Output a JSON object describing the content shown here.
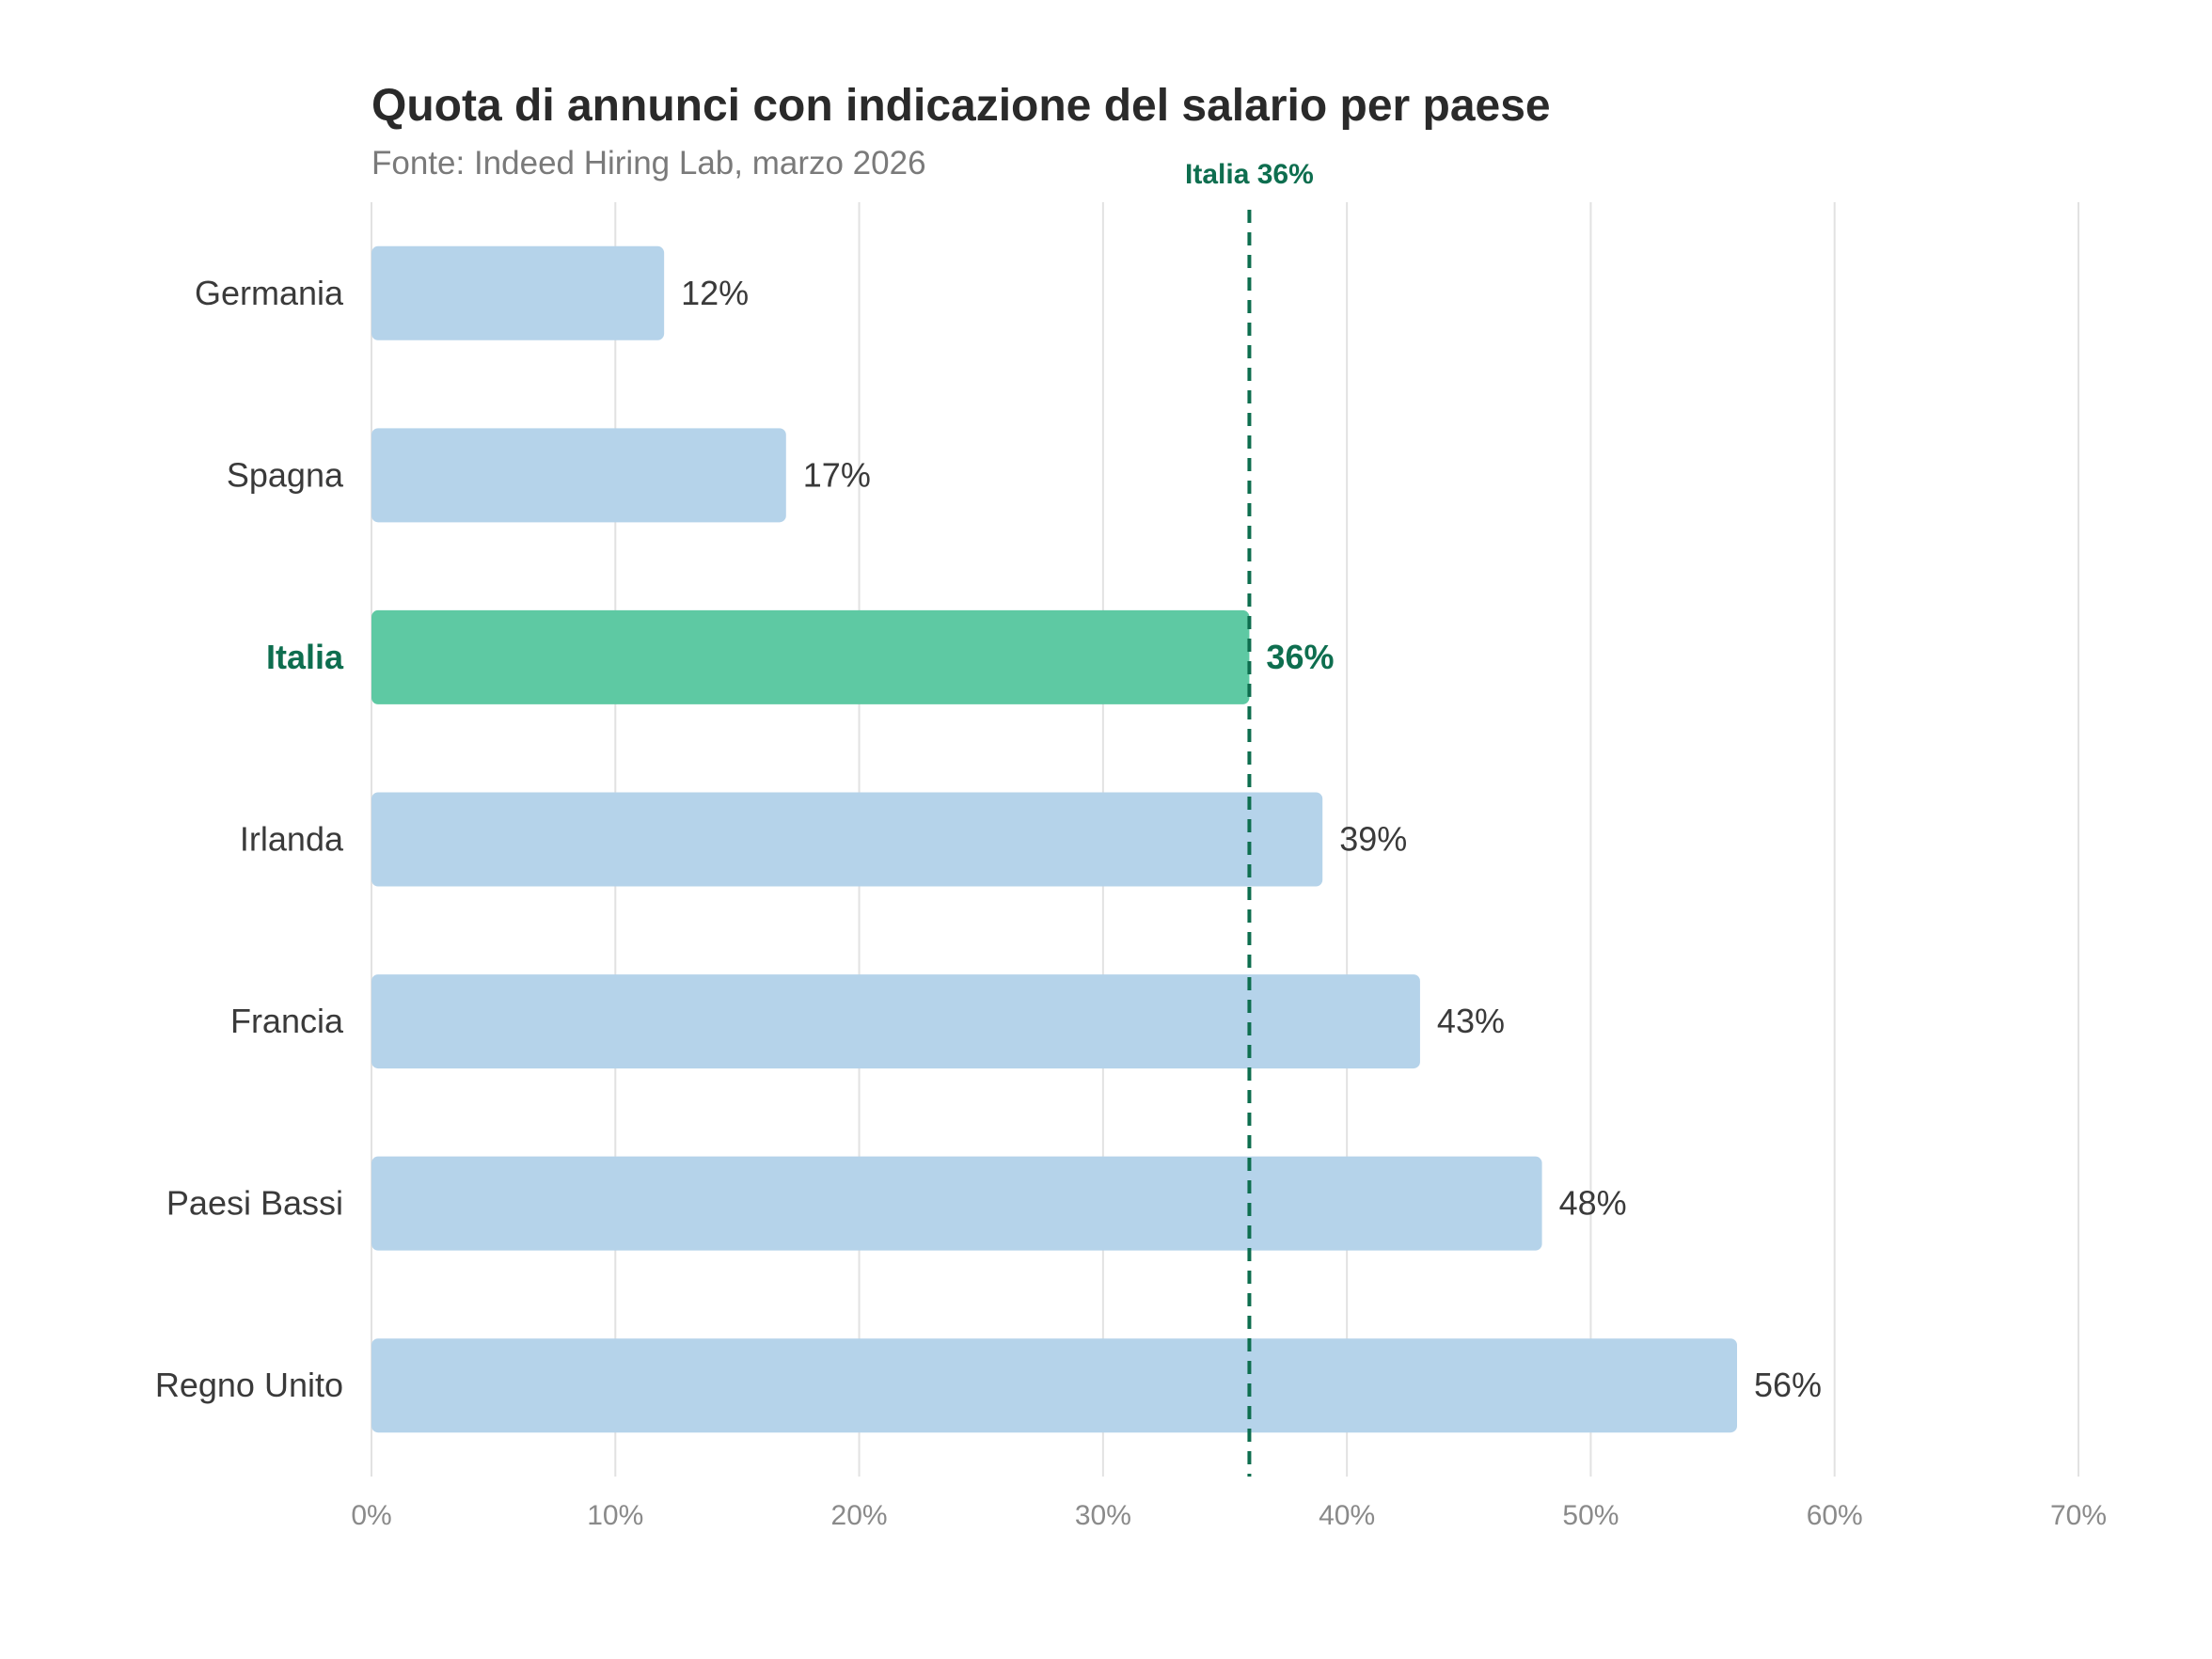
{
  "chart_data": {
    "type": "bar",
    "orientation": "horizontal",
    "title": "Quota di annunci con indicazione del salario per paese",
    "subtitle": "Fonte: Indeed Hiring Lab, marzo 2026",
    "categories": [
      "Germania",
      "Spagna",
      "Italia",
      "Irlanda",
      "Francia",
      "Paesi Bassi",
      "Regno Unito"
    ],
    "values": [
      12,
      17,
      36,
      39,
      43,
      48,
      56
    ],
    "value_labels": [
      "12%",
      "17%",
      "36%",
      "39%",
      "43%",
      "48%",
      "56%"
    ],
    "highlight": "Italia",
    "xlim": [
      0,
      70
    ],
    "xticks": [
      0,
      10,
      20,
      30,
      40,
      50,
      60,
      70
    ],
    "xtick_labels": [
      "0%",
      "10%",
      "20%",
      "30%",
      "40%",
      "50%",
      "60%",
      "70%"
    ],
    "reference_line": {
      "value": 36,
      "label": "Italia 36%"
    },
    "grid": "vertical",
    "colors": {
      "bar": "#b5d3ea",
      "highlight_bar": "#5ec9a3",
      "highlight_text": "#0e6e4f",
      "reference_line": "#0e6e4f"
    }
  }
}
